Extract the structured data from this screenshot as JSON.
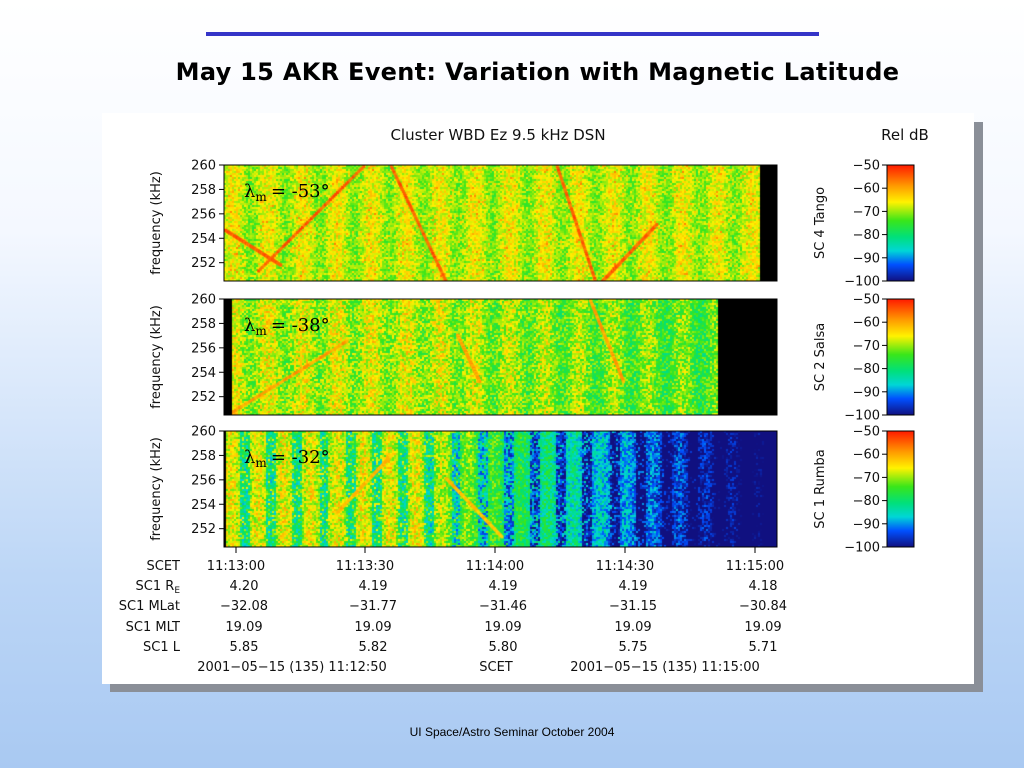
{
  "slide": {
    "title": "May 15 AKR Event:  Variation with Magnetic Latitude",
    "footer": "UI Space/Astro Seminar October 2004"
  },
  "chart_data": {
    "type": "heatmap",
    "title": "Cluster WBD Ez 9.5 kHz DSN",
    "colorbar_title": "Rel dB",
    "ylabel": "frequency (kHz)",
    "ylim": [
      250.5,
      260
    ],
    "yticks": [
      "260",
      "258",
      "256",
      "254",
      "252"
    ],
    "ytick_values": [
      260,
      258,
      256,
      254,
      252
    ],
    "zticks": [
      "−50",
      "−60",
      "−70",
      "−80",
      "−90",
      "−100"
    ],
    "zlim": [
      -100,
      -50
    ],
    "panels": [
      {
        "label": "SC 4 Tango",
        "lambda": "= -53°",
        "data_end": 0.968,
        "noise": 0.35,
        "blue": 0.0,
        "drift_strength": 1.0
      },
      {
        "label": "SC 2 Salsa",
        "lambda": "= -38°",
        "data_end": 0.908,
        "noise": 0.5,
        "blue": 0.12,
        "drift_strength": 0.5
      },
      {
        "label": "SC 1 Rumba",
        "lambda": "= -32°",
        "data_end": 1.0,
        "noise": 0.5,
        "blue": 0.75,
        "drift_strength": 0.3
      }
    ],
    "lambda_symbol": "λ",
    "lambda_sub": "m",
    "x_labels": {
      "row_labels": [
        "SCET",
        "SC1 R",
        "SC1 MLat",
        "SC1 MLT",
        "SC1 L"
      ],
      "re_subscript": "E"
    },
    "x_columns": [
      {
        "SCET": "11:13:00",
        "R": "4.20",
        "MLat": "−32.08",
        "MLT": "19.09",
        "L": "5.85"
      },
      {
        "SCET": "11:13:30",
        "R": "4.19",
        "MLat": "−31.77",
        "MLT": "19.09",
        "L": "5.82"
      },
      {
        "SCET": "11:14:00",
        "R": "4.19",
        "MLat": "−31.46",
        "MLT": "19.09",
        "L": "5.80"
      },
      {
        "SCET": "11:14:30",
        "R": "4.19",
        "MLat": "−31.15",
        "MLT": "19.09",
        "L": "5.75"
      },
      {
        "SCET": "11:15:00",
        "R": "4.18",
        "MLat": "−30.84",
        "MLT": "19.09",
        "L": "5.71"
      }
    ],
    "time_range": {
      "start": "2001−05−15 (135) 11:12:50",
      "middle": "SCET",
      "end": "2001−05−15 (135) 11:15:00"
    }
  }
}
